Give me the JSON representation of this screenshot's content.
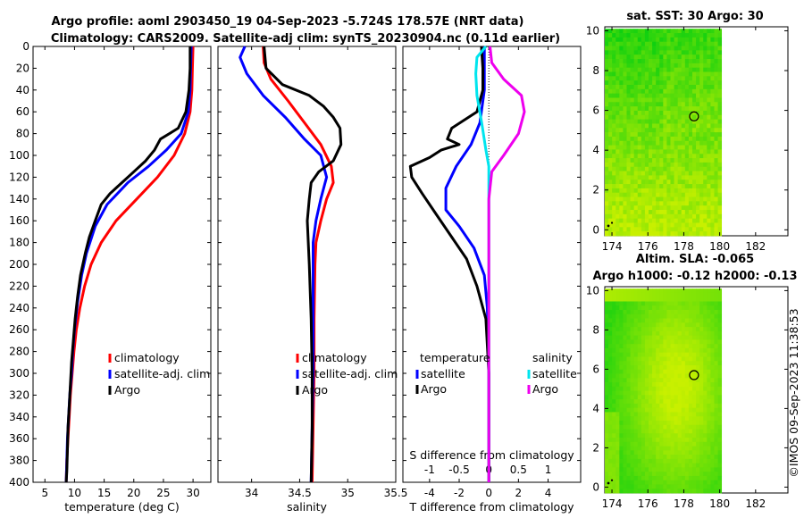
{
  "titles": {
    "line1": "Argo profile: aoml 2903450_19 04-Sep-2023 -5.724S 178.57E (NRT data)",
    "line2": "Climatology: CARS2009. Satellite-adj clim: synTS_20230904.nc (0.11d earlier)",
    "sst_title": "sat. SST: 30 Argo: 30",
    "sla_title1": "Altim. SLA: -0.065",
    "sla_title2": "Argo h1000: -0.12 h2000: -0.13",
    "side_note": "©IMOS 09-Sep-2023 11:38:53"
  },
  "colors": {
    "climatology": "#ff0000",
    "satellite": "#0000ff",
    "argo": "#000000",
    "sal_satellite": "#00e5ee",
    "sal_argo": "#ee00ee"
  },
  "chart_data": [
    {
      "id": "temperature",
      "type": "line",
      "xlabel": "temperature (deg C)",
      "ylim": [
        0,
        400
      ],
      "xlim": [
        3,
        33
      ],
      "xticks": [
        5,
        10,
        15,
        20,
        25,
        30
      ],
      "yticks": [
        0,
        20,
        40,
        60,
        80,
        100,
        120,
        140,
        160,
        180,
        200,
        220,
        240,
        260,
        280,
        300,
        320,
        340,
        360,
        380,
        400
      ],
      "legend": [
        "climatology",
        "satellite-adj. clim",
        "Argo"
      ],
      "series": [
        {
          "name": "climatology",
          "color": "#ff0000",
          "points": [
            [
              30.0,
              0
            ],
            [
              29.9,
              20
            ],
            [
              29.8,
              40
            ],
            [
              29.5,
              60
            ],
            [
              28.6,
              80
            ],
            [
              26.8,
              100
            ],
            [
              24.0,
              120
            ],
            [
              20.5,
              140
            ],
            [
              17.0,
              160
            ],
            [
              14.5,
              180
            ],
            [
              12.8,
              200
            ],
            [
              11.7,
              220
            ],
            [
              10.9,
              240
            ],
            [
              10.3,
              260
            ],
            [
              9.9,
              280
            ],
            [
              9.6,
              300
            ],
            [
              9.3,
              320
            ],
            [
              9.1,
              340
            ],
            [
              8.9,
              360
            ],
            [
              8.7,
              380
            ],
            [
              8.6,
              400
            ]
          ]
        },
        {
          "name": "satellite-adj. clim",
          "color": "#0000ff",
          "points": [
            [
              29.7,
              0
            ],
            [
              29.6,
              20
            ],
            [
              29.5,
              40
            ],
            [
              29.2,
              60
            ],
            [
              28.0,
              80
            ],
            [
              25.5,
              95
            ],
            [
              22.5,
              110
            ],
            [
              19.0,
              125
            ],
            [
              15.5,
              145
            ],
            [
              13.5,
              165
            ],
            [
              12.0,
              190
            ],
            [
              11.2,
              210
            ],
            [
              10.5,
              235
            ],
            [
              10.0,
              260
            ],
            [
              9.7,
              280
            ],
            [
              9.5,
              300
            ],
            [
              9.2,
              320
            ],
            [
              9.0,
              340
            ],
            [
              8.8,
              360
            ],
            [
              8.7,
              380
            ],
            [
              8.6,
              400
            ]
          ]
        },
        {
          "name": "Argo",
          "color": "#000000",
          "points": [
            [
              29.5,
              0
            ],
            [
              29.5,
              20
            ],
            [
              29.3,
              40
            ],
            [
              28.8,
              60
            ],
            [
              27.5,
              75
            ],
            [
              26.0,
              80
            ],
            [
              24.5,
              85
            ],
            [
              23.5,
              95
            ],
            [
              22.0,
              105
            ],
            [
              20.0,
              115
            ],
            [
              18.0,
              125
            ],
            [
              16.0,
              135
            ],
            [
              14.5,
              145
            ],
            [
              13.5,
              160
            ],
            [
              12.5,
              175
            ],
            [
              11.8,
              190
            ],
            [
              11.0,
              210
            ],
            [
              10.5,
              230
            ],
            [
              10.1,
              250
            ],
            [
              9.8,
              270
            ],
            [
              9.5,
              290
            ],
            [
              9.3,
              310
            ],
            [
              9.1,
              330
            ],
            [
              8.9,
              350
            ],
            [
              8.8,
              370
            ],
            [
              8.7,
              390
            ],
            [
              8.6,
              400
            ]
          ]
        }
      ]
    },
    {
      "id": "salinity",
      "type": "line",
      "xlabel": "salinity",
      "ylim": [
        0,
        400
      ],
      "xlim": [
        33.65,
        35.5
      ],
      "xticks": [
        34,
        34.5,
        35,
        35.5
      ],
      "legend": [
        "climatology",
        "satellite-adj. clim",
        "Argo"
      ],
      "series": [
        {
          "name": "climatology",
          "color": "#ff0000",
          "points": [
            [
              34.12,
              0
            ],
            [
              34.13,
              15
            ],
            [
              34.2,
              30
            ],
            [
              34.38,
              50
            ],
            [
              34.55,
              70
            ],
            [
              34.72,
              90
            ],
            [
              34.83,
              110
            ],
            [
              34.85,
              125
            ],
            [
              34.78,
              140
            ],
            [
              34.72,
              160
            ],
            [
              34.67,
              180
            ],
            [
              34.66,
              200
            ],
            [
              34.65,
              250
            ],
            [
              34.65,
              300
            ],
            [
              34.64,
              350
            ],
            [
              34.63,
              400
            ]
          ]
        },
        {
          "name": "satellite-adj. clim",
          "color": "#0000ff",
          "points": [
            [
              33.93,
              0
            ],
            [
              33.88,
              10
            ],
            [
              33.95,
              25
            ],
            [
              34.12,
              45
            ],
            [
              34.35,
              65
            ],
            [
              34.55,
              85
            ],
            [
              34.72,
              100
            ],
            [
              34.78,
              120
            ],
            [
              34.72,
              140
            ],
            [
              34.67,
              160
            ],
            [
              34.64,
              180
            ],
            [
              34.64,
              200
            ],
            [
              34.64,
              250
            ],
            [
              34.64,
              300
            ],
            [
              34.63,
              350
            ],
            [
              34.62,
              400
            ]
          ]
        },
        {
          "name": "Argo",
          "color": "#000000",
          "points": [
            [
              34.13,
              0
            ],
            [
              34.15,
              20
            ],
            [
              34.32,
              35
            ],
            [
              34.6,
              45
            ],
            [
              34.75,
              55
            ],
            [
              34.85,
              65
            ],
            [
              34.92,
              75
            ],
            [
              34.93,
              90
            ],
            [
              34.85,
              105
            ],
            [
              34.7,
              115
            ],
            [
              34.62,
              125
            ],
            [
              34.6,
              140
            ],
            [
              34.58,
              160
            ],
            [
              34.59,
              180
            ],
            [
              34.6,
              200
            ],
            [
              34.62,
              250
            ],
            [
              34.63,
              300
            ],
            [
              34.63,
              350
            ],
            [
              34.62,
              400
            ]
          ]
        }
      ]
    },
    {
      "id": "difference",
      "type": "line",
      "xlabel": "T difference from climatology",
      "xlabel_top": "S difference from climatology",
      "ylim": [
        0,
        400
      ],
      "xlim": [
        -5.8,
        6.2
      ],
      "xticks": [
        -4,
        -2,
        0,
        2,
        4
      ],
      "s_xlim": [
        -1.45,
        1.55
      ],
      "s_xticks": [
        -1,
        -0.5,
        0,
        0.5,
        1
      ],
      "s_xtick_labels": [
        "-1",
        "-0.5",
        "0",
        "0.5",
        "1"
      ],
      "legend": {
        "temperature_header": "temperature",
        "salinity_header": "salinity",
        "t_entries": [
          "satellite",
          "Argo"
        ],
        "s_entries": [
          "satellite",
          "Argo"
        ]
      },
      "series": [
        {
          "name": "T satellite",
          "color": "#0000ff",
          "points": [
            [
              -0.3,
              0
            ],
            [
              -0.3,
              40
            ],
            [
              -0.6,
              70
            ],
            [
              -1.2,
              90
            ],
            [
              -2.2,
              110
            ],
            [
              -2.9,
              130
            ],
            [
              -2.9,
              150
            ],
            [
              -2.0,
              165
            ],
            [
              -1.0,
              185
            ],
            [
              -0.3,
              210
            ],
            [
              -0.1,
              240
            ],
            [
              0,
              300
            ],
            [
              0,
              400
            ]
          ]
        },
        {
          "name": "T Argo",
          "color": "#000000",
          "points": [
            [
              -0.5,
              0
            ],
            [
              -0.4,
              20
            ],
            [
              -0.4,
              40
            ],
            [
              -0.8,
              60
            ],
            [
              -2.5,
              75
            ],
            [
              -2.8,
              85
            ],
            [
              -2.0,
              90
            ],
            [
              -3.2,
              95
            ],
            [
              -4.0,
              102
            ],
            [
              -5.3,
              110
            ],
            [
              -5.2,
              120
            ],
            [
              -4.5,
              135
            ],
            [
              -3.5,
              155
            ],
            [
              -2.5,
              175
            ],
            [
              -1.5,
              195
            ],
            [
              -0.8,
              220
            ],
            [
              -0.2,
              250
            ],
            [
              0,
              300
            ],
            [
              0,
              400
            ]
          ]
        },
        {
          "name": "S satellite",
          "color": "#00e5ee",
          "points": [
            [
              -0.05,
              0
            ],
            [
              -0.2,
              10
            ],
            [
              -0.22,
              25
            ],
            [
              -0.2,
              45
            ],
            [
              -0.12,
              70
            ],
            [
              -0.05,
              95
            ],
            [
              0,
              110
            ],
            [
              0,
              400
            ]
          ]
        },
        {
          "name": "S Argo",
          "color": "#ee00ee",
          "points": [
            [
              0.02,
              0
            ],
            [
              0.05,
              15
            ],
            [
              0.25,
              30
            ],
            [
              0.55,
              45
            ],
            [
              0.6,
              60
            ],
            [
              0.5,
              80
            ],
            [
              0.25,
              100
            ],
            [
              0.05,
              115
            ],
            [
              0,
              140
            ],
            [
              0,
              400
            ]
          ]
        }
      ]
    },
    {
      "id": "sst_map",
      "type": "heatmap",
      "title": "sat. SST: 30 Argo: 30",
      "xlim": [
        173.6,
        183.8
      ],
      "ylim": [
        -0.3,
        10.2
      ],
      "xticks": [
        174,
        176,
        178,
        180,
        182
      ],
      "yticks": [
        0,
        2,
        4,
        6,
        8,
        10
      ],
      "data_extent": {
        "lon": [
          173.6,
          180.1
        ],
        "lat": [
          -0.3,
          10.1
        ]
      },
      "argo_position": {
        "lon": 178.57,
        "lat": 5.7
      }
    },
    {
      "id": "sla_map",
      "type": "heatmap",
      "title": "Altim. SLA: -0.065",
      "xlim": [
        173.6,
        183.8
      ],
      "ylim": [
        -0.3,
        10.2
      ],
      "xticks": [
        174,
        176,
        178,
        180,
        182
      ],
      "yticks": [
        0,
        2,
        4,
        6,
        8,
        10
      ],
      "data_extent": {
        "lon": [
          173.6,
          180.1
        ],
        "lat": [
          -0.3,
          10.1
        ]
      },
      "argo_position": {
        "lon": 178.57,
        "lat": 5.7
      }
    }
  ]
}
